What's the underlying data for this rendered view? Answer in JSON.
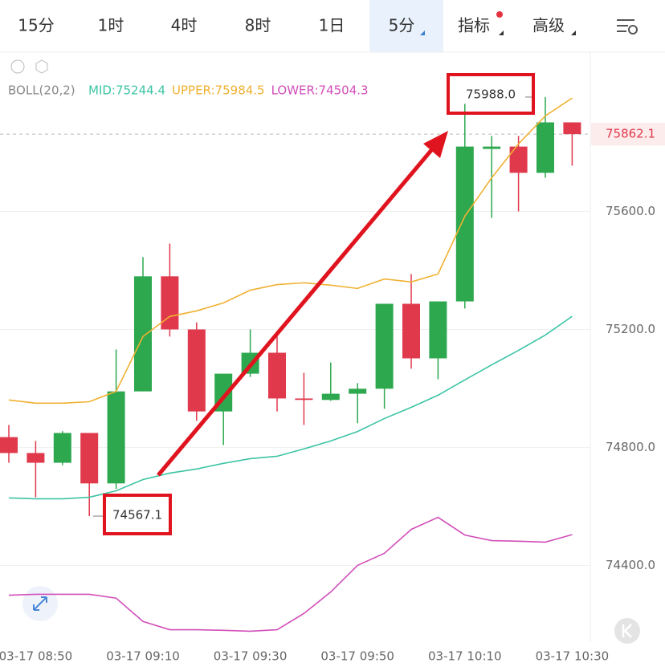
{
  "tabs": [
    "15分",
    "1时",
    "4时",
    "8时",
    "1日",
    "5分",
    "指标",
    "高级"
  ],
  "selected_tab": 5,
  "chart_data": {
    "type": "candlestick",
    "indicator": "BOLL(20,2)",
    "categories": [
      null,
      "03-17 08:50",
      null,
      null,
      null,
      "03-17 09:10",
      null,
      null,
      null,
      "03-17 09:30",
      null,
      null,
      null,
      "03-17 09:50",
      null,
      null,
      null,
      "03-17 10:10",
      null,
      null,
      null,
      "03-17 10:30"
    ],
    "open": [
      74835,
      74781,
      74748,
      74849,
      74678,
      74990,
      75380,
      75200,
      74922,
      75050,
      75121,
      74966,
      74961,
      74982,
      74999,
      75287,
      75102,
      75295,
      75812,
      75820,
      75731,
      75902
    ],
    "high": [
      74876,
      74822,
      74855,
      74849,
      75132,
      75445,
      75491,
      75224,
      75050,
      75200,
      75176,
      75053,
      75088,
      75018,
      75287,
      75388,
      75295,
      75965,
      75856,
      75856,
      75988.0,
      75902
    ],
    "low": [
      74748,
      74631,
      74740,
      74567.1,
      74659,
      74990,
      75176,
      74890,
      74808,
      75039,
      74922,
      74876,
      74958,
      74882,
      74931,
      75067,
      75031,
      75271,
      75578,
      75600,
      75714,
      75755
    ],
    "close": [
      74781,
      74748,
      74849,
      74678,
      74990,
      75380,
      75200,
      74922,
      75050,
      75121,
      74966,
      74961,
      74982,
      74999,
      75287,
      75102,
      75295,
      75820,
      75820,
      75731,
      75902,
      75862.1
    ],
    "up_color": "#2ea84f",
    "down_color": "#e0394c",
    "series": [
      {
        "name": "MID:75244.4",
        "color": "#3dc4a5",
        "values": [
          74629,
          74626,
          74626,
          74631,
          74653,
          74691,
          74713,
          74727,
          74746,
          74762,
          74770,
          74795,
          74822,
          74854,
          74898,
          74936,
          74977,
          75029,
          75080,
          75129,
          75181,
          75244.4
        ]
      },
      {
        "name": "UPPER:75984.5",
        "color": "#f0b132",
        "values": [
          74961,
          74950,
          74950,
          74955,
          74990,
          75176,
          75244,
          75263,
          75290,
          75333,
          75352,
          75358,
          75350,
          75339,
          75371,
          75361,
          75388,
          75584,
          75714,
          75829,
          75924,
          75984.5
        ]
      },
      {
        "name": "LOWER:74504.3",
        "color": "#d24fb9",
        "values": [
          74299,
          74302,
          74302,
          74302,
          74289,
          74210,
          74182,
          74182,
          74180,
          74177,
          74182,
          74237,
          74310,
          74400,
          74441,
          74522,
          74563,
          74503,
          74484,
          74482,
          74479,
          74504.3
        ]
      }
    ],
    "ylim": [
      74140,
      76140
    ],
    "yticks": [
      {
        "value": 74400,
        "label": "74400.0"
      },
      {
        "value": 74800,
        "label": "74800.0"
      },
      {
        "value": 75200,
        "label": "75200.0"
      },
      {
        "value": 75600,
        "label": "75600.0"
      }
    ],
    "grid": true,
    "last_price": {
      "value": 75862.1,
      "label": "75862.1"
    },
    "annotations": [
      {
        "value": 74567.1,
        "label": "74567.1"
      },
      {
        "value": 75988.0,
        "label": "75988.0"
      }
    ]
  }
}
